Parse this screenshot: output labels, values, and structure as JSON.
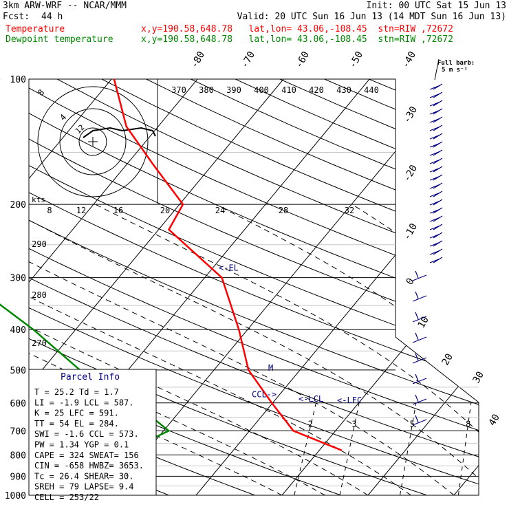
{
  "header": {
    "model": "3km ARW-WRF -- NCAR/MMM",
    "init": "Init: 00 UTC Sat 15 Jun 13",
    "fcst_label": "Fcst:",
    "fcst_value": "44 h",
    "valid": "Valid: 20 UTC Sun 16 Jun 13 (14 MDT Sun 16 Jun 13)",
    "temp_label": "Temperature",
    "temp_info": "x,y=190.58,648.78   lat,lon= 43.06,-108.45  stn=RIW ,72672",
    "dew_label": "Dewpoint temperature",
    "dew_info": "x,y=190.58,648.78   lat,lon= 43.06,-108.45  stn=RIW ,72672"
  },
  "colors": {
    "temperature": "#ff0000",
    "dewpoint": "#008800",
    "parcel_title": "#000080",
    "annotation": "#000080"
  },
  "chart_data": {
    "type": "line",
    "title": "",
    "pressure_levels": [
      100,
      200,
      300,
      400,
      500,
      600,
      700,
      800,
      900,
      1000
    ],
    "pressure_labels": [
      "100",
      "200",
      "300",
      "400",
      "500",
      "600",
      "700",
      "800",
      "900",
      "1000"
    ],
    "skewed_temp_ticks": [
      "-80",
      "-70",
      "-60",
      "-50",
      "-40",
      "-30",
      "-20",
      "-10",
      "0",
      "10",
      "20",
      "30",
      "40"
    ],
    "theta_e_ticks": [
      "370",
      "380",
      "390",
      "400",
      "410",
      "420",
      "430",
      "440"
    ],
    "theta_ticks": [
      "290",
      "280",
      "270"
    ],
    "mixing_ratio_ticks": [
      "2",
      "3",
      "5",
      "8",
      "12",
      "20"
    ],
    "hodo_speed_ticks": [
      "8",
      "12",
      "16",
      "20",
      "24",
      "28",
      "32"
    ],
    "hodo_unit": "kts",
    "hodo_ring_labels": [
      "8",
      "4",
      "12"
    ],
    "barb_legend": [
      "Full barb:",
      "5 m s⁻¹"
    ],
    "series": [
      {
        "name": "Temperature",
        "color": "#ff0000",
        "points": [
          [
            -7.4,
            780
          ],
          [
            -14.9,
            700
          ],
          [
            -20.1,
            600
          ],
          [
            -26.0,
            500
          ],
          [
            -31.0,
            400
          ],
          [
            -38.0,
            300
          ],
          [
            -48.8,
            230
          ],
          [
            -49.6,
            200
          ],
          [
            -57.0,
            160
          ],
          [
            -63.7,
            130
          ],
          [
            -69.7,
            100
          ]
        ]
      },
      {
        "name": "Dewpoint temperature",
        "color": "#008800",
        "points": [
          [
            -32.2,
            780
          ],
          [
            -29.4,
            700
          ],
          [
            -36.1,
            600
          ],
          [
            -45.6,
            500
          ],
          [
            -54.9,
            400
          ],
          [
            -68.0,
            300
          ],
          [
            -69.1,
            250
          ],
          [
            -71.3,
            200
          ],
          [
            -78.6,
            150
          ],
          [
            -83.4,
            120
          ],
          [
            -83.0,
            100
          ]
        ]
      }
    ],
    "annotations": [
      {
        "text": "<-EL",
        "p": 284
      },
      {
        "text": "CCL->",
        "p": 573
      },
      {
        "text": "<-LCL",
        "p": 587
      },
      {
        "text": "<-LFC",
        "p": 591
      },
      {
        "text": "M",
        "p": 495
      }
    ]
  },
  "parcel": {
    "title": "Parcel  Info",
    "rows": [
      "T   =   25.2  Td  =   1.7",
      "LI  =   -1.9  LCL =  587.",
      "K   =     25  LFC =  591.",
      "TT  =     54  EL  =  284.",
      "SWI =   -1.6  CCL =  573.",
      "PW  =   1.34  YGP =   0.1",
      "CAPE =   324  SWEAT=  156",
      "CIN  =  -658  HWBZ= 3653.",
      "Tc  =   26.4  SHEAR=  30.",
      "SREH =    79  LAPSE=  9.4",
      "CELL = 253/22"
    ]
  }
}
